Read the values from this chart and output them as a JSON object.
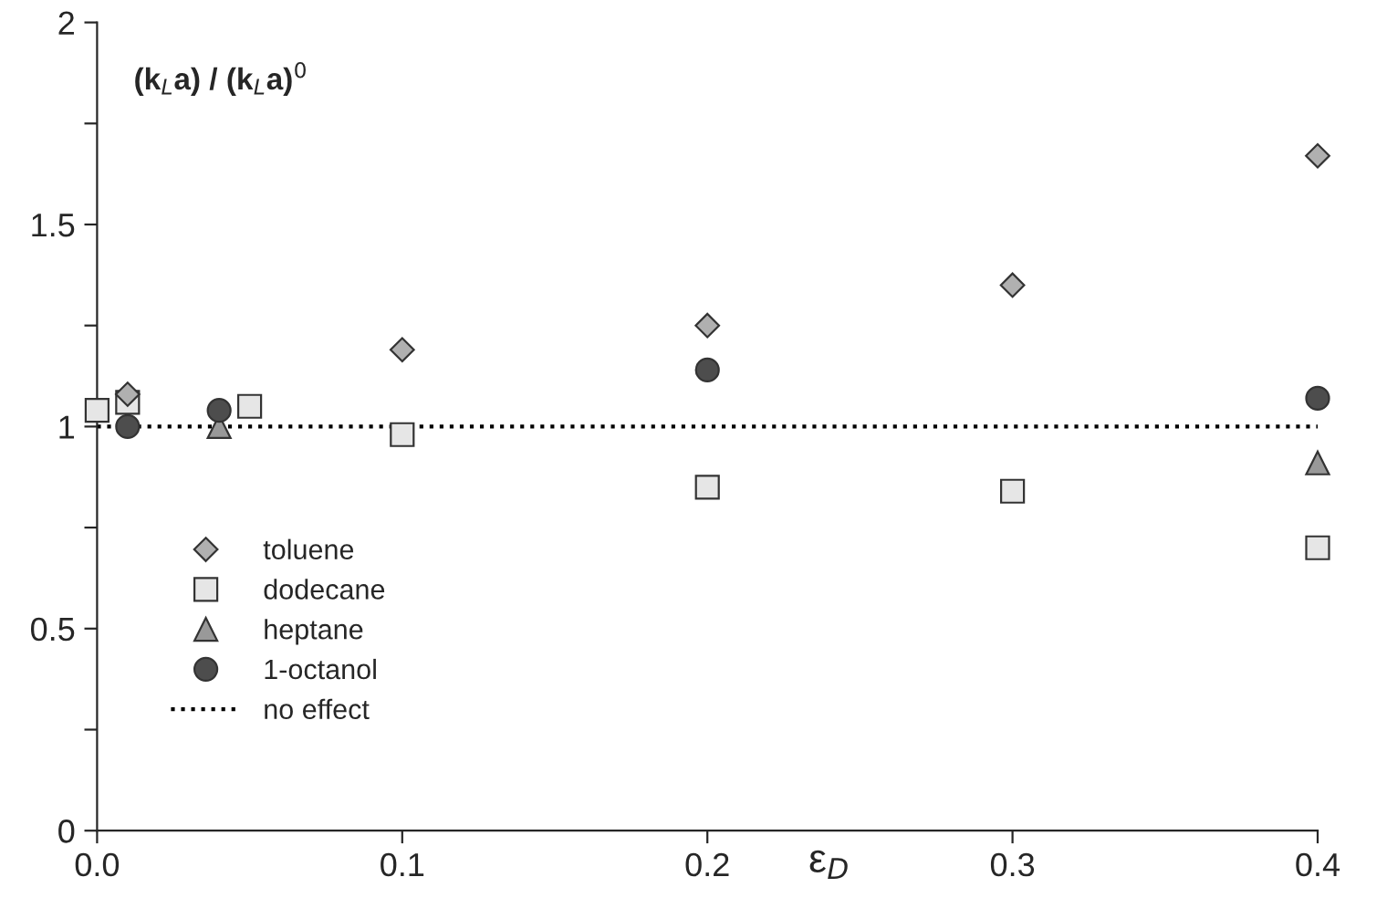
{
  "chart_data": {
    "type": "scatter",
    "xlabel": "ε$_{D}$",
    "ylabel": "(k$_{L}$a) / (k$_{L}$a)$^{0}$",
    "series": [
      {
        "name": "toluene",
        "color": "#b0b0b0",
        "marker": "diamond",
        "x": [
          0.01,
          0.1,
          0.2,
          0.3,
          0.4
        ],
        "values": [
          1.08,
          1.19,
          1.25,
          1.35,
          1.67
        ]
      },
      {
        "name": "dodecane",
        "color": "#e6e6e6",
        "marker": "square",
        "x": [
          0.0,
          0.01,
          0.05,
          0.1,
          0.2,
          0.3,
          0.4
        ],
        "values": [
          1.04,
          1.06,
          1.05,
          0.98,
          0.85,
          0.84,
          0.7
        ]
      },
      {
        "name": "heptane",
        "color": "#999999",
        "marker": "triangle",
        "x": [
          0.04,
          0.4
        ],
        "values": [
          1.0,
          0.91
        ]
      },
      {
        "name": "1-octanol",
        "color": "#4d4d4d",
        "marker": "circle",
        "x": [
          0.01,
          0.04,
          0.2,
          0.4
        ],
        "values": [
          1.0,
          1.04,
          1.14,
          1.07
        ]
      }
    ],
    "ref_lines": [
      {
        "axis": "y",
        "value": 1,
        "label": "no effect",
        "color": "#000000",
        "line_style": "dotted"
      }
    ],
    "xlim": [
      0,
      0.4
    ],
    "ylim": [
      0,
      2
    ],
    "xticks": [
      {
        "value": 0,
        "label": "0.0"
      },
      0.1,
      0.2,
      0.3,
      0.4
    ],
    "yticks": [
      0,
      {
        "value": 0.25,
        "label": null
      },
      0.5,
      {
        "value": 0.75,
        "label": null
      },
      1,
      {
        "value": 1.25,
        "label": null
      },
      1.5,
      {
        "value": 1.75,
        "label": null
      },
      2
    ],
    "grid": false,
    "legend": "bottom left"
  }
}
